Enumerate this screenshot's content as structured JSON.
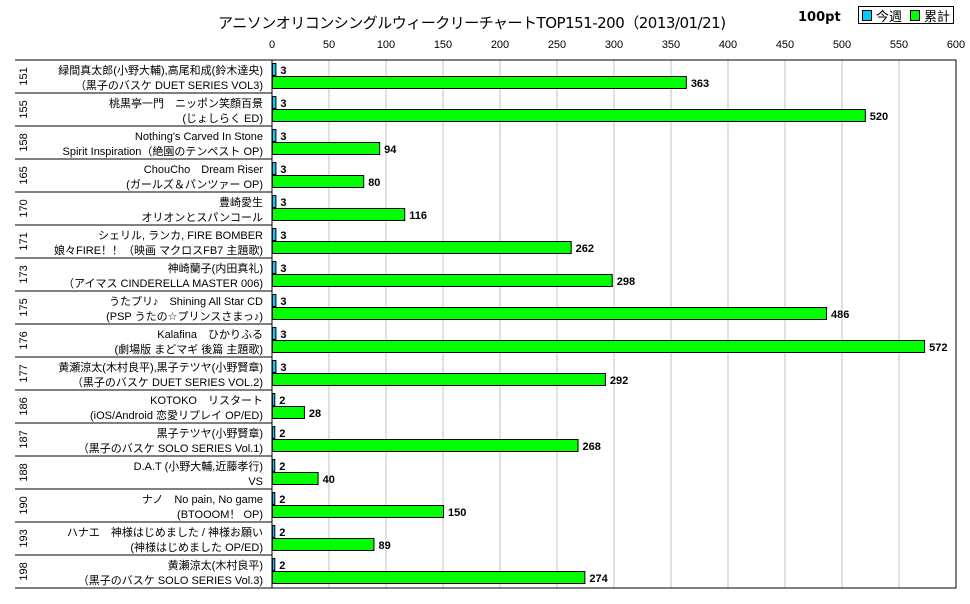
{
  "chart_data": {
    "type": "bar",
    "title": "アニソンオリコンシングルウィークリーチャートTOP151-200（2013/01/21)",
    "unit_label": "100pt",
    "xlim": [
      0,
      600
    ],
    "x_ticks": [
      0,
      50,
      100,
      150,
      200,
      250,
      300,
      350,
      400,
      450,
      500,
      550,
      600
    ],
    "grid": true,
    "legend": {
      "placement": "top-right",
      "entries": [
        "今週",
        "累計"
      ]
    },
    "series_colors": {
      "今週": "#00ccff",
      "累計": "#00ff00"
    },
    "rows": [
      {
        "rank": "151",
        "line1": "緑間真太郎(小野大輔),高尾和成(鈴木達央)",
        "line2": "（黒子のバスケ DUET SERIES VOL3)",
        "week": 3,
        "total": 363
      },
      {
        "rank": "155",
        "line1": "桃黒亭一門　ニッポン笑顔百景",
        "line2": "(じょしらく ED)",
        "week": 3,
        "total": 520
      },
      {
        "rank": "158",
        "line1": "Nothing's Carved In Stone",
        "line2": "Spirit Inspiration（絶園のテンペスト OP)",
        "week": 3,
        "total": 94
      },
      {
        "rank": "165",
        "line1": "ChouCho　Dream Riser",
        "line2": "(ガールズ＆パンツァー OP)",
        "week": 3,
        "total": 80
      },
      {
        "rank": "170",
        "line1": "豊崎愛生",
        "line2": "オリオンとスパンコール",
        "week": 3,
        "total": 116
      },
      {
        "rank": "171",
        "line1": "シェリル, ランカ, FIRE BOMBER",
        "line2": "娘々FIRE！！（映画 マクロスFB7 主題歌)",
        "week": 3,
        "total": 262
      },
      {
        "rank": "173",
        "line1": "神崎蘭子(内田真礼)",
        "line2": "（アイマス CINDERELLA MASTER 006)",
        "week": 3,
        "total": 298
      },
      {
        "rank": "175",
        "line1": "うたプリ♪　Shining All Star CD",
        "line2": "(PSP うたの☆プリンスさまっ♪)",
        "week": 3,
        "total": 486
      },
      {
        "rank": "176",
        "line1": "Kalafina　ひかりふる",
        "line2": "(劇場版 まどマギ 後篇 主題歌)",
        "week": 3,
        "total": 572
      },
      {
        "rank": "177",
        "line1": "黄瀬涼太(木村良平),黒子テツヤ(小野賢章)",
        "line2": "（黒子のバスケ DUET SERIES VOL.2)",
        "week": 3,
        "total": 292
      },
      {
        "rank": "186",
        "line1": "KOTOKO　リスタート",
        "line2": "(iOS/Android 恋愛リプレイ OP/ED)",
        "week": 2,
        "total": 28
      },
      {
        "rank": "187",
        "line1": "黒子テツヤ(小野賢章)",
        "line2": "（黒子のバスケ SOLO SERIES Vol.1)",
        "week": 2,
        "total": 268
      },
      {
        "rank": "188",
        "line1": "D.A.T (小野大輔,近藤孝行)",
        "line2": "VS",
        "week": 2,
        "total": 40
      },
      {
        "rank": "190",
        "line1": "ナノ　No pain, No game",
        "line2": "(BTOOOM！ OP)",
        "week": 2,
        "total": 150
      },
      {
        "rank": "193",
        "line1": "ハナエ　神様はじめました / 神様お願い",
        "line2": "(神様はじめました OP/ED)",
        "week": 2,
        "total": 89
      },
      {
        "rank": "198",
        "line1": "黄瀬涼太(木村良平)",
        "line2": "（黒子のバスケ SOLO SERIES Vol.3)",
        "week": 2,
        "total": 274
      }
    ]
  }
}
